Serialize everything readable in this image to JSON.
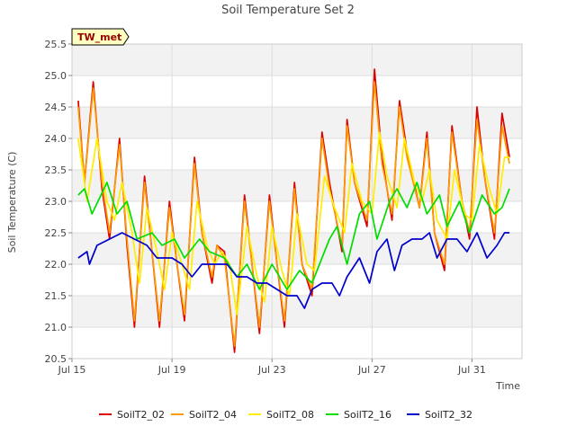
{
  "chart_data": {
    "type": "line",
    "title": "Soil Temperature Set 2",
    "xlabel": "Time",
    "ylabel": "Soil Temperature (C)",
    "site_badge": "TW_met",
    "ylim": [
      20.5,
      25.5
    ],
    "y_ticks": [
      "20.5",
      "21.0",
      "21.5",
      "22.0",
      "22.5",
      "23.0",
      "23.5",
      "24.0",
      "24.5",
      "25.0",
      "25.5"
    ],
    "xlim_days": [
      0,
      18
    ],
    "x_ticks": [
      {
        "day": 0,
        "label": "Jul 15"
      },
      {
        "day": 4,
        "label": "Jul 19"
      },
      {
        "day": 8,
        "label": "Jul 23"
      },
      {
        "day": 12,
        "label": "Jul 27"
      },
      {
        "day": 16,
        "label": "Jul 31"
      }
    ],
    "grid": true,
    "legend_position": "bottom",
    "series": [
      {
        "name": "SoilT2_02",
        "color": "#dd0000",
        "points": [
          [
            0.25,
            24.6
          ],
          [
            0.5,
            23.3
          ],
          [
            0.85,
            24.9
          ],
          [
            1.2,
            23.2
          ],
          [
            1.5,
            22.4
          ],
          [
            1.9,
            24.0
          ],
          [
            2.2,
            22.3
          ],
          [
            2.5,
            21.0
          ],
          [
            2.9,
            23.4
          ],
          [
            3.2,
            22.2
          ],
          [
            3.5,
            21.0
          ],
          [
            3.9,
            23.0
          ],
          [
            4.2,
            22.0
          ],
          [
            4.5,
            21.1
          ],
          [
            4.9,
            23.7
          ],
          [
            5.2,
            22.5
          ],
          [
            5.6,
            21.7
          ],
          [
            5.8,
            22.3
          ],
          [
            6.1,
            22.2
          ],
          [
            6.5,
            20.6
          ],
          [
            6.9,
            23.1
          ],
          [
            7.2,
            22.0
          ],
          [
            7.5,
            20.9
          ],
          [
            7.9,
            23.1
          ],
          [
            8.2,
            22.0
          ],
          [
            8.5,
            21.0
          ],
          [
            8.9,
            23.3
          ],
          [
            9.2,
            22.0
          ],
          [
            9.6,
            21.5
          ],
          [
            10.0,
            24.1
          ],
          [
            10.3,
            23.3
          ],
          [
            10.8,
            22.2
          ],
          [
            11.0,
            24.3
          ],
          [
            11.3,
            23.3
          ],
          [
            11.8,
            22.6
          ],
          [
            12.1,
            25.1
          ],
          [
            12.4,
            23.7
          ],
          [
            12.8,
            22.7
          ],
          [
            13.1,
            24.6
          ],
          [
            13.4,
            23.8
          ],
          [
            13.9,
            22.9
          ],
          [
            14.2,
            24.1
          ],
          [
            14.5,
            22.5
          ],
          [
            14.9,
            21.9
          ],
          [
            15.2,
            24.2
          ],
          [
            15.6,
            23.0
          ],
          [
            15.9,
            22.4
          ],
          [
            16.2,
            24.5
          ],
          [
            16.5,
            23.4
          ],
          [
            16.9,
            22.4
          ],
          [
            17.2,
            24.4
          ],
          [
            17.5,
            23.7
          ]
        ]
      },
      {
        "name": "SoilT2_04",
        "color": "#ff9900",
        "points": [
          [
            0.25,
            24.5
          ],
          [
            0.5,
            23.3
          ],
          [
            0.85,
            24.8
          ],
          [
            1.2,
            23.3
          ],
          [
            1.5,
            22.5
          ],
          [
            1.9,
            23.9
          ],
          [
            2.2,
            22.4
          ],
          [
            2.5,
            21.1
          ],
          [
            2.9,
            23.3
          ],
          [
            3.2,
            22.2
          ],
          [
            3.5,
            21.1
          ],
          [
            3.9,
            22.9
          ],
          [
            4.2,
            22.0
          ],
          [
            4.5,
            21.2
          ],
          [
            4.9,
            23.6
          ],
          [
            5.2,
            22.5
          ],
          [
            5.6,
            21.8
          ],
          [
            5.8,
            22.3
          ],
          [
            6.1,
            22.1
          ],
          [
            6.5,
            20.7
          ],
          [
            6.9,
            23.0
          ],
          [
            7.2,
            22.0
          ],
          [
            7.5,
            21.0
          ],
          [
            7.9,
            23.0
          ],
          [
            8.2,
            22.0
          ],
          [
            8.5,
            21.1
          ],
          [
            8.9,
            23.2
          ],
          [
            9.2,
            22.0
          ],
          [
            9.6,
            21.6
          ],
          [
            10.0,
            24.0
          ],
          [
            10.3,
            23.2
          ],
          [
            10.8,
            22.3
          ],
          [
            11.0,
            24.2
          ],
          [
            11.3,
            23.3
          ],
          [
            11.8,
            22.7
          ],
          [
            12.1,
            24.9
          ],
          [
            12.4,
            23.6
          ],
          [
            12.8,
            22.8
          ],
          [
            13.1,
            24.5
          ],
          [
            13.4,
            23.7
          ],
          [
            13.9,
            22.9
          ],
          [
            14.2,
            24.0
          ],
          [
            14.5,
            22.5
          ],
          [
            14.9,
            22.0
          ],
          [
            15.2,
            24.1
          ],
          [
            15.6,
            23.0
          ],
          [
            15.9,
            22.5
          ],
          [
            16.2,
            24.3
          ],
          [
            16.5,
            23.4
          ],
          [
            16.9,
            22.5
          ],
          [
            17.2,
            24.2
          ],
          [
            17.5,
            23.6
          ]
        ]
      },
      {
        "name": "SoilT2_08",
        "color": "#ffee00",
        "points": [
          [
            0.25,
            24.0
          ],
          [
            0.6,
            23.0
          ],
          [
            1.0,
            24.0
          ],
          [
            1.4,
            23.0
          ],
          [
            1.7,
            22.7
          ],
          [
            2.0,
            23.3
          ],
          [
            2.4,
            22.5
          ],
          [
            2.7,
            21.7
          ],
          [
            3.0,
            22.9
          ],
          [
            3.4,
            22.2
          ],
          [
            3.7,
            21.6
          ],
          [
            4.0,
            22.5
          ],
          [
            4.4,
            22.0
          ],
          [
            4.7,
            21.6
          ],
          [
            5.0,
            23.0
          ],
          [
            5.4,
            22.3
          ],
          [
            5.7,
            22.0
          ],
          [
            6.0,
            22.2
          ],
          [
            6.3,
            22.0
          ],
          [
            6.6,
            21.2
          ],
          [
            7.0,
            22.6
          ],
          [
            7.4,
            21.8
          ],
          [
            7.7,
            21.4
          ],
          [
            8.0,
            22.6
          ],
          [
            8.4,
            21.9
          ],
          [
            8.7,
            21.5
          ],
          [
            9.0,
            22.8
          ],
          [
            9.4,
            22.0
          ],
          [
            9.7,
            21.9
          ],
          [
            10.1,
            23.4
          ],
          [
            10.5,
            22.9
          ],
          [
            10.9,
            22.5
          ],
          [
            11.2,
            23.6
          ],
          [
            11.6,
            23.0
          ],
          [
            12.0,
            22.8
          ],
          [
            12.3,
            24.1
          ],
          [
            12.6,
            23.4
          ],
          [
            13.0,
            22.9
          ],
          [
            13.3,
            24.0
          ],
          [
            13.7,
            23.3
          ],
          [
            14.0,
            23.0
          ],
          [
            14.3,
            23.5
          ],
          [
            14.6,
            22.7
          ],
          [
            15.0,
            22.4
          ],
          [
            15.3,
            23.5
          ],
          [
            15.7,
            22.8
          ],
          [
            16.0,
            22.7
          ],
          [
            16.3,
            23.9
          ],
          [
            16.7,
            23.2
          ],
          [
            17.0,
            22.8
          ],
          [
            17.3,
            23.7
          ],
          [
            17.5,
            23.7
          ]
        ]
      },
      {
        "name": "SoilT2_16",
        "color": "#00dd00",
        "points": [
          [
            0.25,
            23.1
          ],
          [
            0.5,
            23.2
          ],
          [
            0.8,
            22.8
          ],
          [
            1.4,
            23.3
          ],
          [
            1.8,
            22.8
          ],
          [
            2.2,
            23.0
          ],
          [
            2.6,
            22.4
          ],
          [
            3.2,
            22.5
          ],
          [
            3.6,
            22.3
          ],
          [
            4.1,
            22.4
          ],
          [
            4.5,
            22.1
          ],
          [
            5.1,
            22.4
          ],
          [
            5.5,
            22.2
          ],
          [
            6.1,
            22.1
          ],
          [
            6.6,
            21.8
          ],
          [
            7.0,
            22.0
          ],
          [
            7.5,
            21.6
          ],
          [
            8.0,
            22.0
          ],
          [
            8.6,
            21.6
          ],
          [
            9.1,
            21.9
          ],
          [
            9.6,
            21.7
          ],
          [
            10.3,
            22.4
          ],
          [
            10.6,
            22.6
          ],
          [
            11.0,
            22.0
          ],
          [
            11.5,
            22.8
          ],
          [
            11.9,
            23.0
          ],
          [
            12.2,
            22.4
          ],
          [
            12.7,
            23.0
          ],
          [
            13.0,
            23.2
          ],
          [
            13.4,
            22.9
          ],
          [
            13.8,
            23.3
          ],
          [
            14.2,
            22.8
          ],
          [
            14.7,
            23.1
          ],
          [
            15.0,
            22.6
          ],
          [
            15.5,
            23.0
          ],
          [
            15.9,
            22.5
          ],
          [
            16.4,
            23.1
          ],
          [
            16.9,
            22.8
          ],
          [
            17.2,
            22.9
          ],
          [
            17.5,
            23.2
          ]
        ]
      },
      {
        "name": "SoilT2_32",
        "color": "#0000cc",
        "points": [
          [
            0.25,
            22.1
          ],
          [
            0.6,
            22.2
          ],
          [
            0.7,
            22.0
          ],
          [
            1.0,
            22.3
          ],
          [
            1.5,
            22.4
          ],
          [
            2.0,
            22.5
          ],
          [
            2.5,
            22.4
          ],
          [
            3.0,
            22.3
          ],
          [
            3.4,
            22.1
          ],
          [
            4.0,
            22.1
          ],
          [
            4.4,
            22.0
          ],
          [
            4.8,
            21.8
          ],
          [
            5.2,
            22.0
          ],
          [
            5.8,
            22.0
          ],
          [
            6.2,
            22.0
          ],
          [
            6.6,
            21.8
          ],
          [
            7.0,
            21.8
          ],
          [
            7.4,
            21.7
          ],
          [
            7.8,
            21.7
          ],
          [
            8.2,
            21.6
          ],
          [
            8.6,
            21.5
          ],
          [
            9.0,
            21.5
          ],
          [
            9.3,
            21.3
          ],
          [
            9.6,
            21.6
          ],
          [
            10.0,
            21.7
          ],
          [
            10.4,
            21.7
          ],
          [
            10.7,
            21.5
          ],
          [
            11.0,
            21.8
          ],
          [
            11.5,
            22.1
          ],
          [
            11.9,
            21.7
          ],
          [
            12.2,
            22.2
          ],
          [
            12.6,
            22.4
          ],
          [
            12.9,
            21.9
          ],
          [
            13.2,
            22.3
          ],
          [
            13.6,
            22.4
          ],
          [
            14.0,
            22.4
          ],
          [
            14.3,
            22.5
          ],
          [
            14.6,
            22.1
          ],
          [
            15.0,
            22.4
          ],
          [
            15.4,
            22.4
          ],
          [
            15.8,
            22.2
          ],
          [
            16.2,
            22.5
          ],
          [
            16.6,
            22.1
          ],
          [
            17.0,
            22.3
          ],
          [
            17.3,
            22.5
          ],
          [
            17.5,
            22.5
          ]
        ]
      }
    ]
  }
}
